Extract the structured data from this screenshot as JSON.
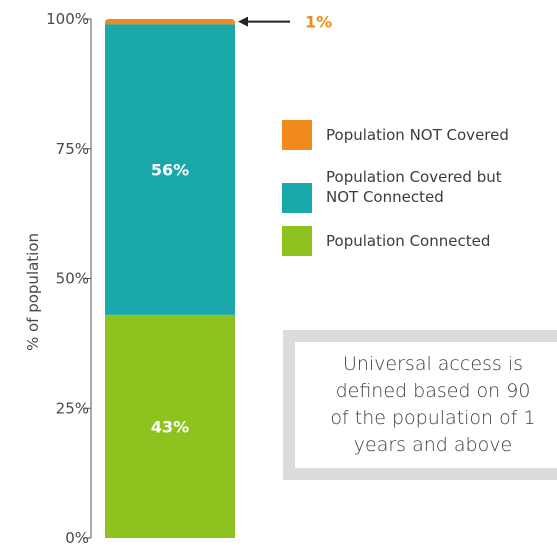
{
  "chart_data": {
    "type": "bar",
    "stacked": true,
    "categories": [
      ""
    ],
    "ylabel": "% of population",
    "ylim": [
      0,
      100
    ],
    "yticks": [
      0,
      25,
      50,
      75,
      100
    ],
    "ytick_labels": [
      "0%",
      "25%",
      "50%",
      "75%",
      "100%"
    ],
    "series": [
      {
        "name": "Population Connected",
        "values": [
          43
        ],
        "label": "43%",
        "color": "#8dc21f"
      },
      {
        "name": "Population Covered but NOT Connected",
        "values": [
          56
        ],
        "label": "56%",
        "color": "#1aa8aa"
      },
      {
        "name": "Population NOT Covered",
        "values": [
          1
        ],
        "label": "1%",
        "color": "#f08a1c"
      }
    ],
    "legend_position": "right"
  },
  "legend": [
    {
      "label": "Population NOT Covered",
      "color": "#f08a1c"
    },
    {
      "label": "Population Covered but\nNOT Connected",
      "color": "#1aa8aa"
    },
    {
      "label": "Population Connected",
      "color": "#8dc21f"
    }
  ],
  "callout": {
    "text": "1%",
    "color": "#f08a1c"
  },
  "note": {
    "text": "Universal access is\ndefined based on 90\nof the population of 1\nyears and above"
  }
}
